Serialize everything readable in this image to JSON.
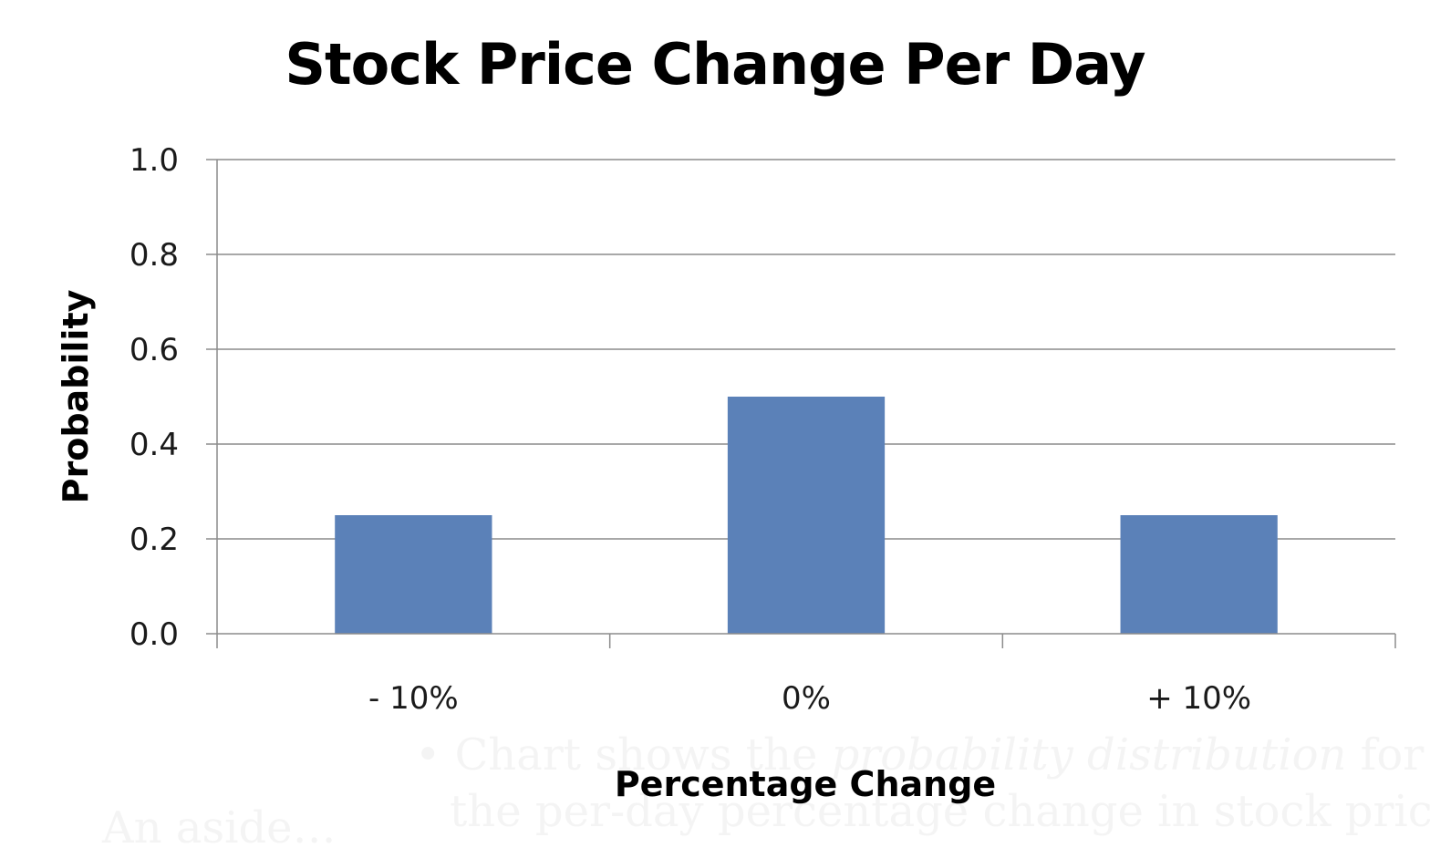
{
  "chart_data": {
    "type": "bar",
    "title": "Stock Price Change Per Day",
    "xlabel": "Percentage Change",
    "ylabel": "Probability",
    "categories": [
      "- 10%",
      "0%",
      "+ 10%"
    ],
    "values": [
      0.25,
      0.5,
      0.25
    ],
    "ylim": [
      0,
      1.0
    ],
    "yticks": [
      "0.0",
      "0.2",
      "0.4",
      "0.6",
      "0.8",
      "1.0"
    ],
    "grid": true,
    "legend": "none",
    "bar_color": "#5b81b8"
  },
  "overlay_text": {
    "aside": "An aside…",
    "bullet": "•",
    "line1_a": "Chart shows the ",
    "line1_em": "probability distribution",
    "line1_b": " for",
    "line2": "the per-day percentage change in stock price"
  }
}
